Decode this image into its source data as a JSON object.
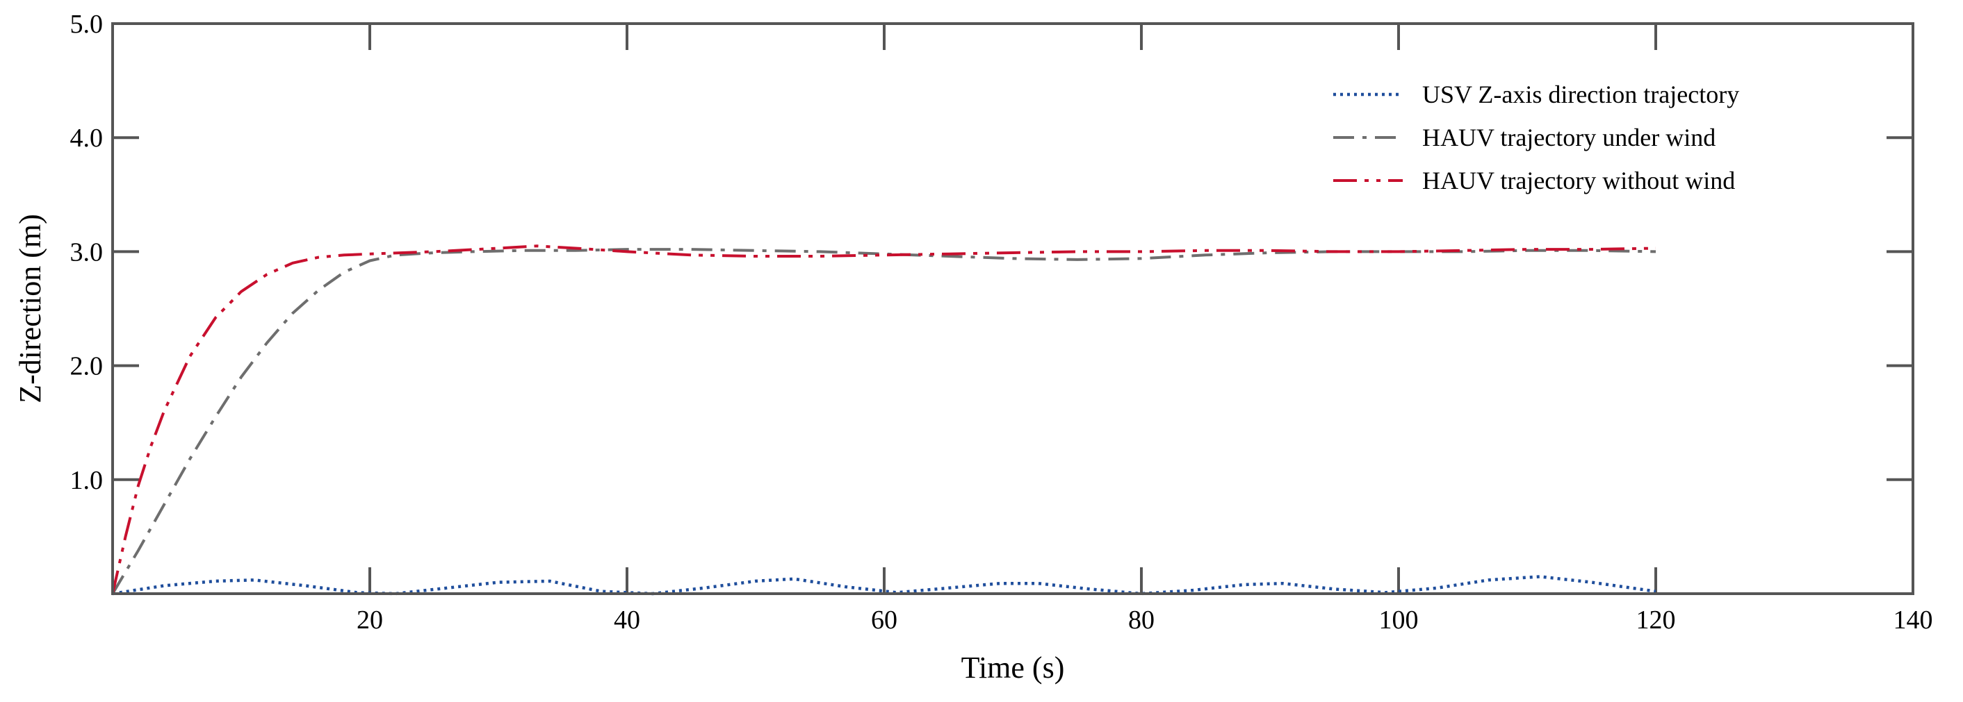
{
  "chart_data": {
    "type": "line",
    "title": "",
    "xlabel": "Time (s)",
    "ylabel": "Z-direction (m)",
    "xlim": [
      0,
      140
    ],
    "ylim": [
      0,
      5
    ],
    "x_ticks": [
      20,
      40,
      60,
      80,
      100,
      120,
      140
    ],
    "x_tick_labels": [
      "20",
      "40",
      "60",
      "80",
      "100",
      "120",
      "140"
    ],
    "y_ticks": [
      1,
      2,
      3,
      4,
      5
    ],
    "y_tick_labels": [
      "1.0",
      "2.0",
      "3.0",
      "4.0",
      "5.0"
    ],
    "grid": false,
    "legend_position": "top-right",
    "series": [
      {
        "name": "USV Z-axis direction trajectory",
        "color": "#1f4e9c",
        "style": "dotted",
        "x": [
          0,
          4,
          8,
          11,
          15,
          19,
          22,
          26,
          30,
          34,
          38,
          42,
          46,
          50,
          53,
          57,
          61,
          65,
          69,
          72,
          76,
          80,
          84,
          88,
          91,
          95,
          99,
          103,
          107,
          111,
          115,
          120
        ],
        "y": [
          0.0,
          0.07,
          0.11,
          0.12,
          0.07,
          0.01,
          0.0,
          0.05,
          0.1,
          0.11,
          0.02,
          0.0,
          0.05,
          0.11,
          0.13,
          0.06,
          0.01,
          0.05,
          0.09,
          0.09,
          0.04,
          0.0,
          0.03,
          0.08,
          0.09,
          0.04,
          0.01,
          0.05,
          0.12,
          0.15,
          0.1,
          0.02
        ]
      },
      {
        "name": "HAUV trajectory under wind",
        "color": "#6e6e6e",
        "style": "dashdot",
        "x": [
          0,
          2,
          4,
          6,
          8,
          10,
          12,
          14,
          16,
          18,
          20,
          22,
          25,
          28,
          32,
          36,
          40,
          45,
          50,
          55,
          60,
          65,
          70,
          75,
          80,
          85,
          90,
          95,
          100,
          105,
          110,
          115,
          120
        ],
        "y": [
          0.0,
          0.38,
          0.78,
          1.18,
          1.55,
          1.9,
          2.2,
          2.46,
          2.66,
          2.82,
          2.92,
          2.97,
          2.99,
          3.0,
          3.01,
          3.01,
          3.02,
          3.02,
          3.01,
          3.0,
          2.98,
          2.96,
          2.94,
          2.93,
          2.94,
          2.97,
          2.99,
          3.0,
          3.0,
          3.0,
          3.01,
          3.01,
          3.0
        ]
      },
      {
        "name": "HAUV trajectory without wind",
        "color": "#c8102e",
        "style": "dashdotdot",
        "x": [
          0,
          1,
          2,
          3,
          4,
          6,
          8,
          10,
          12,
          14,
          16,
          18,
          20,
          25,
          30,
          33,
          36,
          40,
          45,
          50,
          55,
          60,
          65,
          70,
          75,
          80,
          85,
          90,
          95,
          100,
          105,
          110,
          115,
          120
        ],
        "y": [
          0.0,
          0.5,
          0.95,
          1.3,
          1.6,
          2.08,
          2.42,
          2.65,
          2.8,
          2.9,
          2.95,
          2.97,
          2.98,
          3.0,
          3.03,
          3.05,
          3.03,
          3.0,
          2.97,
          2.96,
          2.96,
          2.97,
          2.98,
          2.99,
          3.0,
          3.0,
          3.01,
          3.01,
          3.0,
          3.0,
          3.01,
          3.02,
          3.02,
          3.03
        ]
      }
    ]
  }
}
